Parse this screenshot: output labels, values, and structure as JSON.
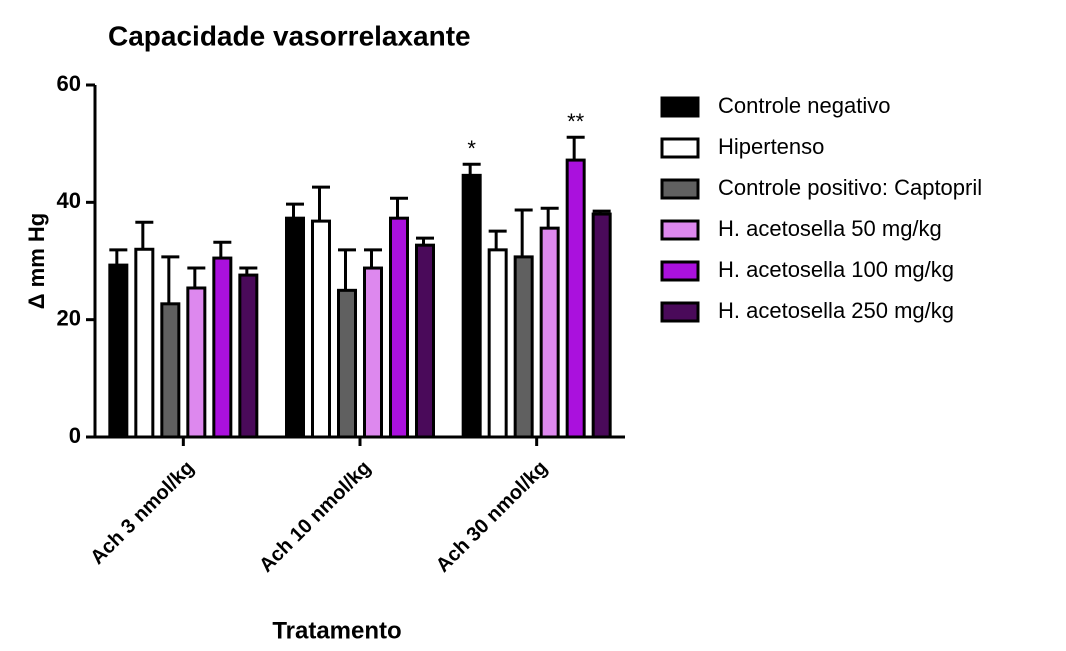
{
  "chart_data": {
    "type": "bar",
    "title": "Capacidade vasorrelaxante",
    "xlabel": "Tratamento",
    "ylabel": "Δ mm Hg",
    "categories": [
      "Ach 3 nmol/kg",
      "Ach 10 nmol/kg",
      "Ach 30 nmol/kg"
    ],
    "ylim": [
      0,
      60
    ],
    "yticks": [
      0,
      20,
      40,
      60
    ],
    "series": [
      {
        "name": "Controle negativo",
        "color": "#000000",
        "values": [
          29.3,
          37.3,
          44.6
        ],
        "errors": [
          2.6,
          2.4,
          1.9
        ],
        "annotations": [
          null,
          null,
          "*"
        ]
      },
      {
        "name": "Hipertenso",
        "color": "#ffffff",
        "values": [
          32.0,
          36.8,
          31.9
        ],
        "errors": [
          4.6,
          5.8,
          3.2
        ]
      },
      {
        "name": "Controle positivo: Captopril",
        "color": "#606060",
        "values": [
          22.7,
          25.0,
          30.7
        ],
        "errors": [
          8.0,
          6.9,
          8.0
        ]
      },
      {
        "name": "H. acetosella 50 mg/kg",
        "color": "#dd88ee",
        "values": [
          25.4,
          28.8,
          35.6
        ],
        "errors": [
          3.4,
          3.1,
          3.4
        ]
      },
      {
        "name": "H. acetosella 100 mg/kg",
        "color": "#aa11dd",
        "values": [
          30.5,
          37.3,
          47.2
        ],
        "errors": [
          2.7,
          3.4,
          3.9
        ],
        "annotations": [
          null,
          null,
          "**"
        ]
      },
      {
        "name": "H. acetosella 250 mg/kg",
        "color": "#4a0a5a",
        "values": [
          27.6,
          32.7,
          38.0
        ],
        "errors": [
          1.2,
          1.2,
          0.5
        ]
      }
    ]
  }
}
